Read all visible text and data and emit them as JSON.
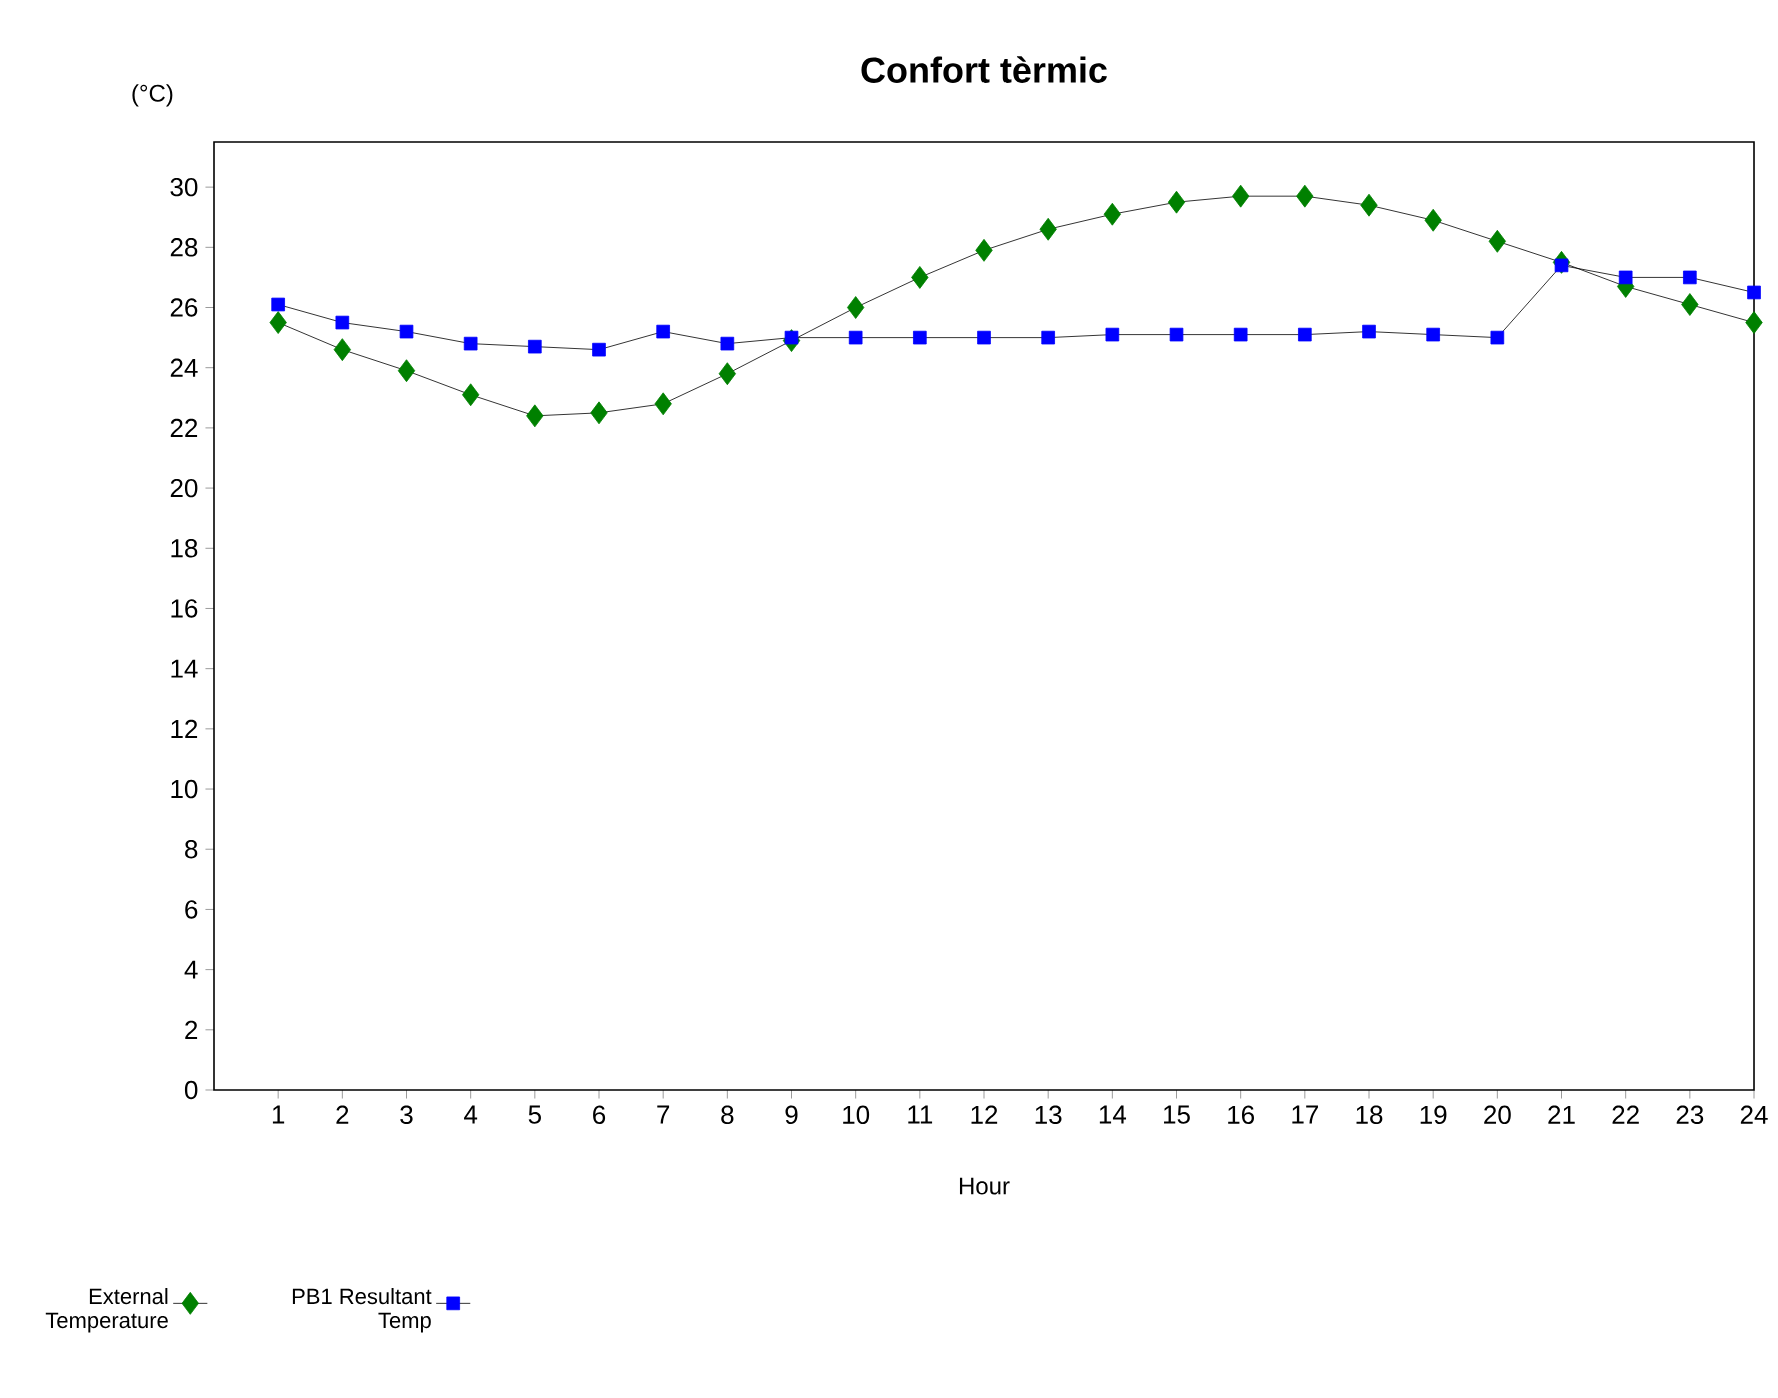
{
  "chart_data": {
    "type": "line",
    "title": "Confort tèrmic",
    "xlabel": "Hour",
    "ylabel": "(°C)",
    "x": [
      1,
      2,
      3,
      4,
      5,
      6,
      7,
      8,
      9,
      10,
      11,
      12,
      13,
      14,
      15,
      16,
      17,
      18,
      19,
      20,
      21,
      22,
      23,
      24
    ],
    "xlim": [
      0,
      24
    ],
    "xticks": [
      1,
      2,
      3,
      4,
      5,
      6,
      7,
      8,
      9,
      10,
      11,
      12,
      13,
      14,
      15,
      16,
      17,
      18,
      19,
      20,
      21,
      22,
      23,
      24
    ],
    "ylim": [
      0,
      31.5
    ],
    "yticks": [
      0,
      2,
      4,
      6,
      8,
      10,
      12,
      14,
      16,
      18,
      20,
      22,
      24,
      26,
      28,
      30
    ],
    "legend": "bottom left",
    "series": [
      {
        "name": "External Temperature",
        "color": "#008000",
        "marker": "diamond",
        "values": [
          25.5,
          24.6,
          23.9,
          23.1,
          22.4,
          22.5,
          22.8,
          23.8,
          24.9,
          26.0,
          27.0,
          27.9,
          28.6,
          29.1,
          29.5,
          29.7,
          29.7,
          29.4,
          28.9,
          28.2,
          27.5,
          26.7,
          26.1,
          25.5
        ]
      },
      {
        "name": "PB1 Resultant Temp",
        "color": "#0000ff",
        "marker": "square",
        "values": [
          26.1,
          25.5,
          25.2,
          24.8,
          24.7,
          24.6,
          25.2,
          24.8,
          25.0,
          25.0,
          25.0,
          25.0,
          25.0,
          25.1,
          25.1,
          25.1,
          25.1,
          25.2,
          25.1,
          25.0,
          27.4,
          27.0,
          27.0,
          26.5
        ]
      }
    ]
  }
}
